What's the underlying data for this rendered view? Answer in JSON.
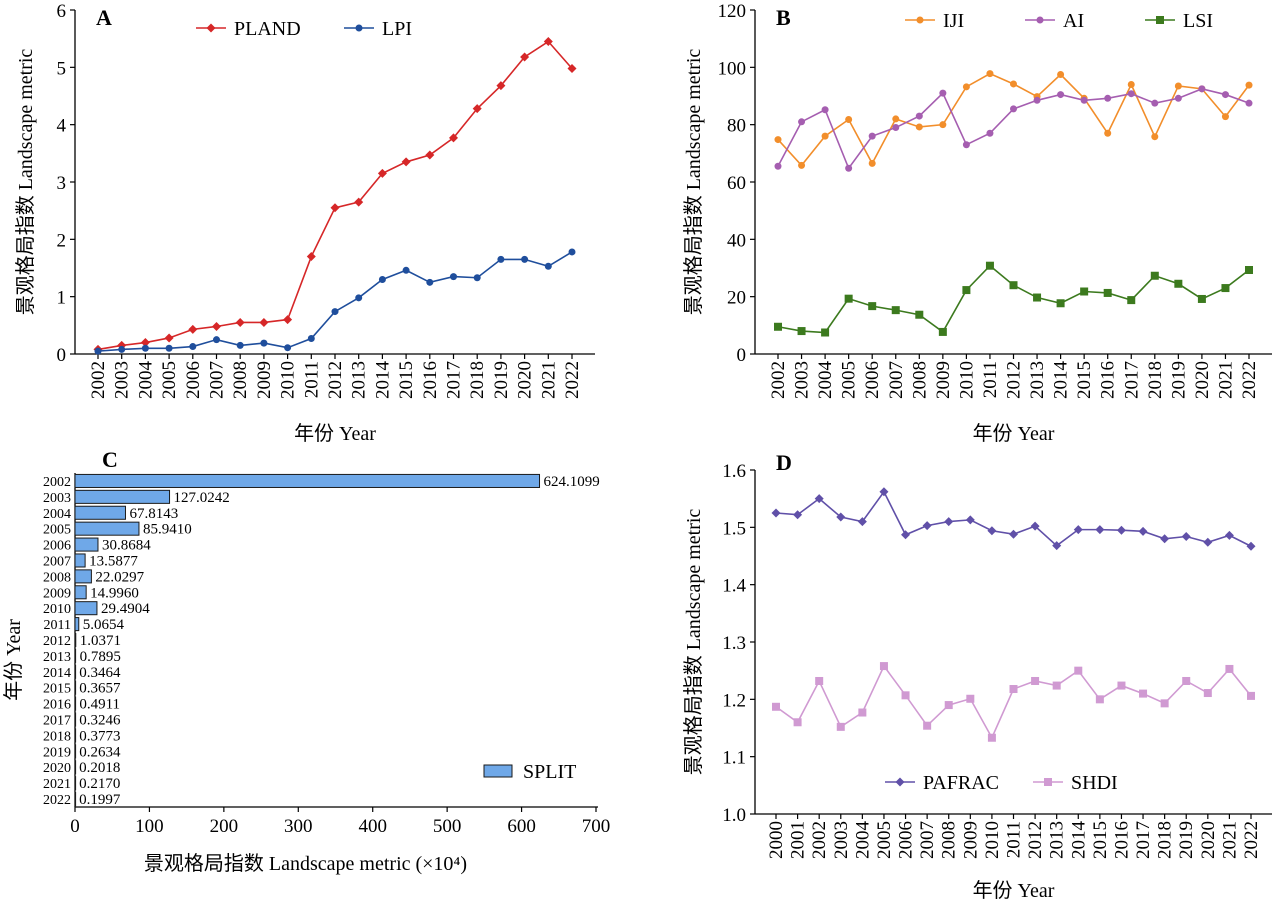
{
  "figure": {
    "panels": [
      "A",
      "B",
      "C",
      "D"
    ]
  },
  "chart_data": [
    {
      "panel": "A",
      "type": "line",
      "xlabel": "年份 Year",
      "ylabel": "景观格局指数 Landscape metric",
      "ylim": [
        0,
        6
      ],
      "yticks": [
        0,
        1,
        2,
        3,
        4,
        5,
        6
      ],
      "legend": "top-left",
      "x": [
        "2002",
        "2003",
        "2004",
        "2005",
        "2006",
        "2007",
        "2008",
        "2009",
        "2010",
        "2011",
        "2012",
        "2013",
        "2014",
        "2015",
        "2016",
        "2017",
        "2018",
        "2019",
        "2020",
        "2021",
        "2022"
      ],
      "series": [
        {
          "name": "PLAND",
          "color": "#d62728",
          "marker": "diamond",
          "values": [
            0.08,
            0.15,
            0.2,
            0.28,
            0.43,
            0.48,
            0.55,
            0.55,
            0.6,
            1.7,
            2.55,
            2.65,
            3.15,
            3.35,
            3.47,
            3.77,
            4.28,
            4.68,
            5.18,
            5.45,
            4.98
          ]
        },
        {
          "name": "LPI",
          "color": "#1f4e9c",
          "marker": "circle",
          "values": [
            0.05,
            0.08,
            0.1,
            0.1,
            0.13,
            0.25,
            0.15,
            0.19,
            0.11,
            0.27,
            0.74,
            0.98,
            1.3,
            1.46,
            1.25,
            1.35,
            1.33,
            1.65,
            1.65,
            1.53,
            1.78
          ]
        }
      ]
    },
    {
      "panel": "B",
      "type": "line",
      "xlabel": "年份 Year",
      "ylabel": "景观格局指数 Landscape metric",
      "ylim": [
        0,
        120
      ],
      "yticks": [
        0,
        20,
        40,
        60,
        80,
        100,
        120
      ],
      "legend": "top",
      "x": [
        "2002",
        "2003",
        "2004",
        "2005",
        "2006",
        "2007",
        "2008",
        "2009",
        "2010",
        "2011",
        "2012",
        "2013",
        "2014",
        "2015",
        "2016",
        "2017",
        "2018",
        "2019",
        "2020",
        "2021",
        "2022"
      ],
      "series": [
        {
          "name": "IJI",
          "color": "#f28e2b",
          "marker": "circle",
          "values": [
            74.8,
            65.8,
            76,
            81.8,
            66.5,
            82,
            79.2,
            80,
            93.2,
            97.8,
            94.2,
            89.8,
            97.5,
            89.2,
            77,
            94,
            75.8,
            93.5,
            92.5,
            82.8,
            93.8
          ]
        },
        {
          "name": "AI",
          "color": "#a55eb0",
          "marker": "circle",
          "values": [
            65.5,
            81,
            85.2,
            64.8,
            76,
            79,
            83,
            91,
            73,
            77,
            85.5,
            88.5,
            90.5,
            88.5,
            89.2,
            90.8,
            87.5,
            89.2,
            92.5,
            90.5,
            87.5
          ]
        },
        {
          "name": "LSI",
          "color": "#3c7a1e",
          "marker": "square",
          "values": [
            9.5,
            8,
            7.5,
            19.3,
            16.7,
            15.3,
            13.7,
            7.7,
            22.3,
            30.8,
            24,
            19.7,
            17.7,
            21.8,
            21.3,
            18.8,
            27.3,
            24.5,
            19.2,
            23,
            29.3
          ]
        }
      ]
    },
    {
      "panel": "C",
      "type": "bar",
      "orientation": "horizontal",
      "xlabel": "景观格局指数 Landscape metric (×10⁴)",
      "ylabel": "年份 Year",
      "xlim": [
        0,
        700
      ],
      "xticks": [
        0,
        100,
        200,
        300,
        400,
        500,
        600,
        700
      ],
      "legend": "bottom-right",
      "categories": [
        "2002",
        "2003",
        "2004",
        "2005",
        "2006",
        "2007",
        "2008",
        "2009",
        "2010",
        "2011",
        "2012",
        "2013",
        "2014",
        "2015",
        "2016",
        "2017",
        "2018",
        "2019",
        "2020",
        "2021",
        "2022"
      ],
      "series": [
        {
          "name": "SPLIT",
          "color": "#6fa8e8",
          "values": [
            624.1099,
            127.0242,
            67.8143,
            85.941,
            30.8684,
            13.5877,
            22.0297,
            14.996,
            29.4904,
            5.0654,
            1.0371,
            0.7895,
            0.3464,
            0.3657,
            0.4911,
            0.3246,
            0.3773,
            0.2634,
            0.2018,
            0.217,
            0.1997
          ],
          "labels": [
            "624.1099",
            "127.0242",
            "67.8143",
            "85.9410",
            "30.8684",
            "13.5877",
            "22.0297",
            "14.9960",
            "29.4904",
            "5.0654",
            "1.0371",
            "0.7895",
            "0.3464",
            "0.3657",
            "0.4911",
            "0.3246",
            "0.3773",
            "0.2634",
            "0.2018",
            "0.2170",
            "0.1997"
          ]
        }
      ]
    },
    {
      "panel": "D",
      "type": "line",
      "xlabel": "年份 Year",
      "ylabel": "景观格局指数 Landscape metric",
      "ylim": [
        1.0,
        1.6
      ],
      "yticks": [
        "1.0",
        "1.1",
        "1.2",
        "1.3",
        "1.4",
        "1.5",
        "1.6"
      ],
      "legend": "bottom",
      "x": [
        "2000",
        "2001",
        "2002",
        "2003",
        "2004",
        "2005",
        "2006",
        "2007",
        "2008",
        "2009",
        "2010",
        "2011",
        "2012",
        "2013",
        "2014",
        "2015",
        "2016",
        "2017",
        "2018",
        "2019",
        "2020",
        "2021",
        "2022"
      ],
      "series": [
        {
          "name": "PAFRAC",
          "color": "#6050a8",
          "marker": "diamond",
          "values": [
            1.525,
            1.522,
            1.55,
            1.518,
            1.51,
            1.562,
            1.487,
            1.503,
            1.51,
            1.513,
            1.494,
            1.488,
            1.502,
            1.468,
            1.496,
            1.496,
            1.495,
            1.493,
            1.48,
            1.484,
            1.474,
            1.486,
            1.467
          ]
        },
        {
          "name": "SHDI",
          "color": "#d09ad2",
          "marker": "square",
          "values": [
            1.187,
            1.16,
            1.232,
            1.152,
            1.177,
            1.258,
            1.207,
            1.154,
            1.19,
            1.201,
            1.133,
            1.218,
            1.232,
            1.224,
            1.25,
            1.2,
            1.224,
            1.21,
            1.193,
            1.232,
            1.211,
            1.253,
            1.206
          ]
        }
      ]
    }
  ]
}
